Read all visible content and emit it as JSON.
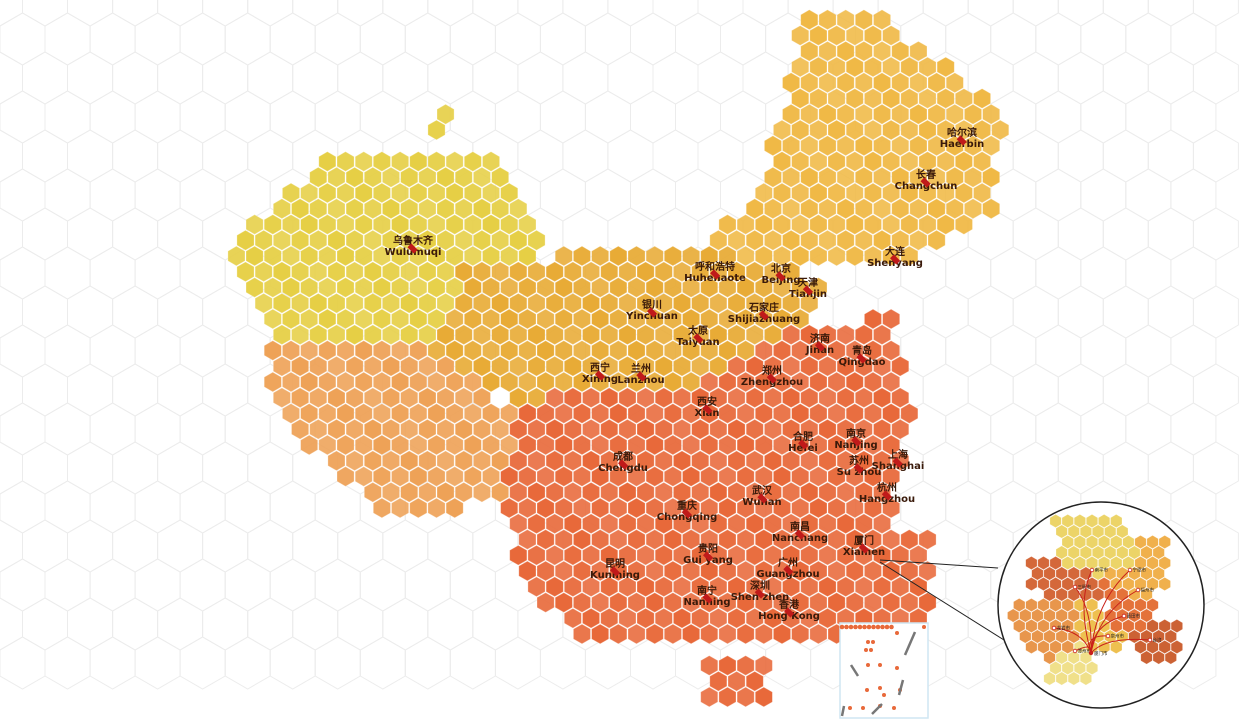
{
  "map": {
    "region_colors": {
      "northeast": "#f0b946",
      "xinjiang": "#e6cf45",
      "tibet": "#eea257",
      "north_central": "#e8ab36",
      "south_east": "#e8693a",
      "marker": "#c01a1a"
    },
    "cities": [
      {
        "zh": "乌鲁木齐",
        "en": "Wulumuqi"
      },
      {
        "zh": "呼和浩特",
        "en": "Huhehaote"
      },
      {
        "zh": "北京",
        "en": "Beijing"
      },
      {
        "zh": "天津",
        "en": "Tianjin"
      },
      {
        "zh": "银川",
        "en": "Yinchuan"
      },
      {
        "zh": "石家庄",
        "en": "Shijiazhuang"
      },
      {
        "zh": "太原",
        "en": "Taiyuan"
      },
      {
        "zh": "济南",
        "en": "Jinan"
      },
      {
        "zh": "青岛",
        "en": "Qingdao"
      },
      {
        "zh": "西宁",
        "en": "Xining"
      },
      {
        "zh": "兰州",
        "en": "Lanzhou"
      },
      {
        "zh": "郑州",
        "en": "Zhengzhou"
      },
      {
        "zh": "西安",
        "en": "Xian"
      },
      {
        "zh": "合肥",
        "en": "Hefei"
      },
      {
        "zh": "南京",
        "en": "Nanjing"
      },
      {
        "zh": "苏州",
        "en": "Su zhou"
      },
      {
        "zh": "上海",
        "en": "Shanghai"
      },
      {
        "zh": "成都",
        "en": "Chengdu"
      },
      {
        "zh": "杭州",
        "en": "Hangzhou"
      },
      {
        "zh": "武汉",
        "en": "Wuhan"
      },
      {
        "zh": "重庆",
        "en": "Chongqing"
      },
      {
        "zh": "南昌",
        "en": "Nanchang"
      },
      {
        "zh": "厦门",
        "en": "Xiamen"
      },
      {
        "zh": "贵阳",
        "en": "Gui yang"
      },
      {
        "zh": "昆明",
        "en": "Kunming"
      },
      {
        "zh": "广州",
        "en": "Guangzhou"
      },
      {
        "zh": "深圳",
        "en": "Shen zhen"
      },
      {
        "zh": "南宁",
        "en": "Nanning"
      },
      {
        "zh": "香港",
        "en": "Hong Kong"
      },
      {
        "zh": "哈尔滨",
        "en": "Haerbin"
      },
      {
        "zh": "长春",
        "en": "Changchun"
      },
      {
        "zh": "大连",
        "en": "Shenyang"
      }
    ]
  },
  "inset": {
    "description_labels": [
      "厦门市",
      "福州市",
      "宁德市",
      "莆田市",
      "泉州市",
      "漳州市",
      "龙岩市",
      "三明市",
      "南平市",
      "台湾"
    ]
  }
}
